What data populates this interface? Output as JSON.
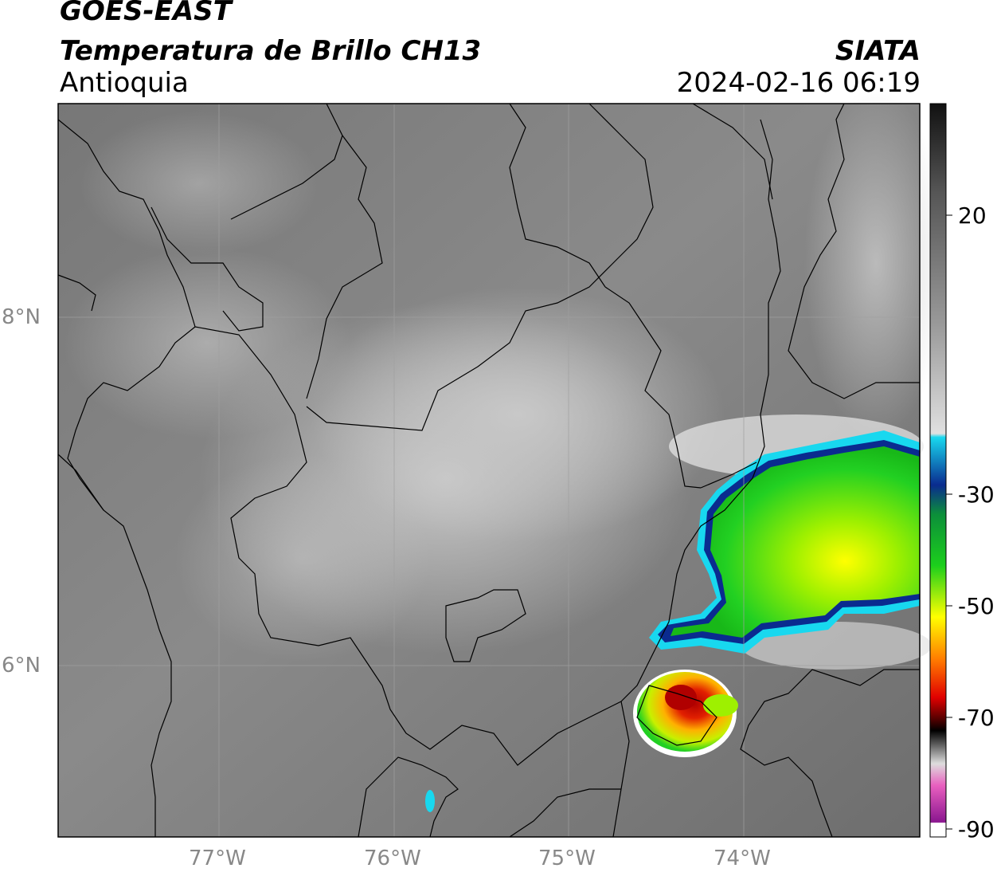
{
  "header": {
    "source": "GOES-EAST",
    "product": "Temperatura de Brillo CH13",
    "region": "Antioquia",
    "agency": "SIATA",
    "datetime": "2024-02-16 06:19"
  },
  "map": {
    "lat_labels": [
      "8°N",
      "6°N"
    ],
    "lon_labels": [
      "77°W",
      "76°W",
      "75°W",
      "74°W"
    ]
  },
  "colorbar": {
    "ticks": [
      "20",
      "-30",
      "-50",
      "-70",
      "-90"
    ],
    "colors": {
      "gray_top": "#1a1a1a",
      "gray_mid": "#9a9a9a",
      "gray_light": "#e6e6e6",
      "cyan": "#18d8ef",
      "blue": "#0a2b8f",
      "green": "#1ccf1c",
      "yellow": "#ffff00",
      "orange": "#ff7700",
      "red": "#e00000",
      "black": "#000000",
      "pink": "#e85fbf",
      "purple": "#8a168f"
    }
  }
}
